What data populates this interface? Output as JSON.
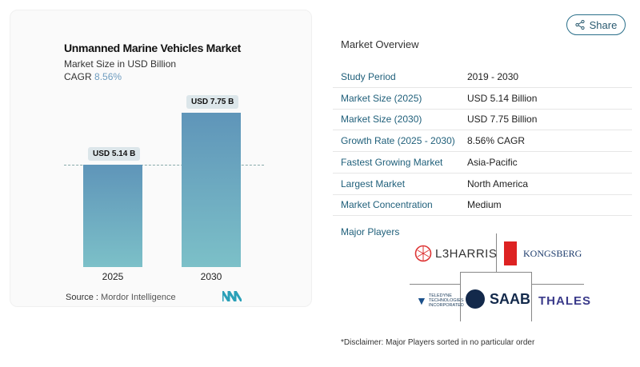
{
  "header": {
    "share_label": "Share",
    "share_icon": "share-icon"
  },
  "chart": {
    "title": "Unmanned Marine Vehicles Market",
    "subtitle": "Market Size in USD Billion",
    "cagr_label": "CAGR",
    "cagr_value": "8.56%",
    "source_label": "Source :",
    "source_value": "Mordor Intelligence"
  },
  "chart_data": {
    "type": "bar",
    "categories": [
      "2025",
      "2030"
    ],
    "values": [
      5.14,
      7.75
    ],
    "data_labels": [
      "USD 5.14 B",
      "USD 7.75 B"
    ],
    "title": "Unmanned Marine Vehicles Market",
    "ylabel": "Market Size in USD Billion",
    "colors": [
      "#5f95b9",
      "#7cc0c8"
    ]
  },
  "overview": {
    "title": "Market Overview",
    "rows": [
      {
        "k": "Study Period",
        "v": "2019 - 2030"
      },
      {
        "k": "Market Size (2025)",
        "v": "USD 5.14 Billion"
      },
      {
        "k": "Market Size (2030)",
        "v": "USD 7.75 Billion"
      },
      {
        "k": "Growth Rate (2025 - 2030)",
        "v": "8.56% CAGR"
      },
      {
        "k": "Fastest Growing Market",
        "v": "Asia-Pacific"
      },
      {
        "k": "Largest Market",
        "v": "North America"
      },
      {
        "k": "Market Concentration",
        "v": "Medium"
      }
    ]
  },
  "players": {
    "title": "Major Players",
    "logos": [
      "L3HARRIS",
      "KONGSBERG",
      "TELEDYNE TECHNOLOGIES INCORPORATED",
      "SAAB",
      "THALES"
    ]
  },
  "disclaimer": "*Disclaimer: Major Players sorted in no particular order"
}
